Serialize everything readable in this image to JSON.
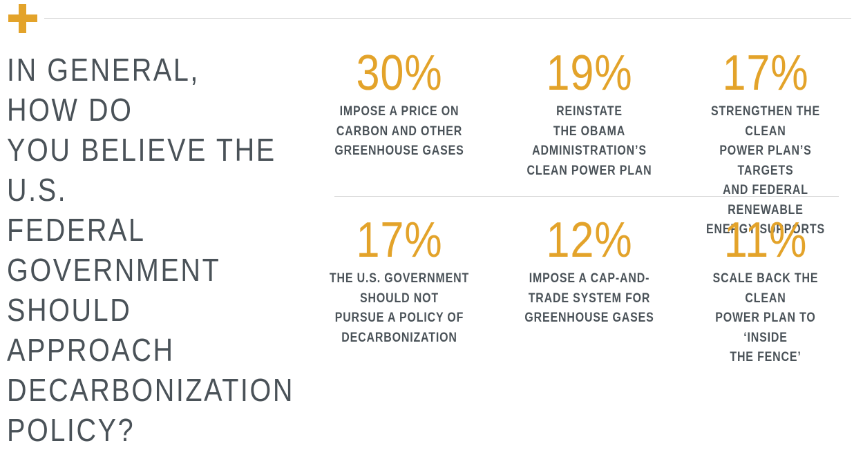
{
  "colors": {
    "accent": "#E3A32A",
    "text": "#4A5258",
    "rule": "#D6D6D6"
  },
  "question": "In general, how do\nyou believe the U.S.\nfederal government\nshould approach\ndecarbonization\npolicy?",
  "chart_data": {
    "type": "table",
    "title": "In general, how do you believe the U.S. federal government should approach decarbonization policy?",
    "unit": "%",
    "categories": [
      "Impose a price on carbon and other greenhouse gases",
      "Reinstate the Obama Administration's Clean Power Plan",
      "Strengthen the Clean Power Plan's targets and federal renewable energy supports",
      "The U.S. government should not pursue a policy of decarbonization",
      "Impose a cap-and-trade system for greenhouse gases",
      "Scale back the Clean Power Plan to 'inside the fence'"
    ],
    "values": [
      30,
      19,
      17,
      17,
      12,
      11
    ],
    "items": [
      {
        "value_label": "30%",
        "label": "Impose a price on\ncarbon and other\ngreenhouse gases"
      },
      {
        "value_label": "19%",
        "label": "Reinstate\nthe Obama\nAdministration’s\nClean Power Plan"
      },
      {
        "value_label": "17%",
        "label": "Strengthen the Clean\nPower Plan’s targets\nand federal renewable\nenergy supports"
      },
      {
        "value_label": "17%",
        "label": "The U.S. government\nshould not\npursue a policy of\ndecarbonization"
      },
      {
        "value_label": "12%",
        "label": "Impose a cap-and-\ntrade system for\ngreenhouse gases"
      },
      {
        "value_label": "11%",
        "label": "Scale back the clean\npower plan to ‘inside\nthe fence’"
      }
    ]
  }
}
